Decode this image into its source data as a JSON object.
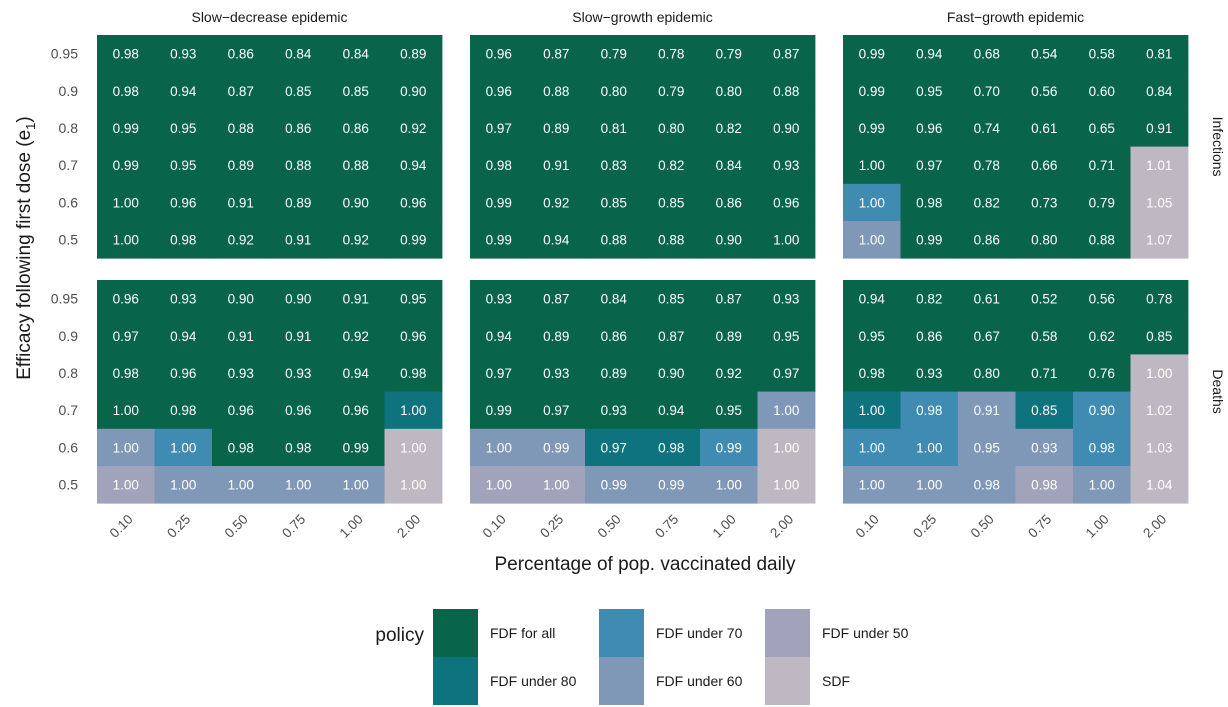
{
  "chart_data": {
    "type": "heatmap",
    "ylabel_main": "Efficacy following first dose (e",
    "ylabel_sub": "1",
    "ylabel_close": ")",
    "xlabel": "Percentage of pop. vaccinated daily",
    "columns": [
      "Slow−decrease epidemic",
      "Slow−growth epidemic",
      "Fast−growth epidemic"
    ],
    "rows": [
      "Infections",
      "Deaths"
    ],
    "x_categories": [
      "0.10",
      "0.25",
      "0.50",
      "0.75",
      "1.00",
      "2.00"
    ],
    "y_categories": [
      "0.95",
      "0.9",
      "0.8",
      "0.7",
      "0.6",
      "0.5"
    ],
    "legend": {
      "title": "policy",
      "entries": [
        {
          "name": "FDF for all",
          "color": "#08654a"
        },
        {
          "name": "FDF under 80",
          "color": "#0e737c"
        },
        {
          "name": "FDF under 70",
          "color": "#3f8bb1"
        },
        {
          "name": "FDF under 60",
          "color": "#7f98b8"
        },
        {
          "name": "FDF under 50",
          "color": "#a0a3b9"
        },
        {
          "name": "SDF",
          "color": "#bdb8c1"
        }
      ]
    },
    "panels": [
      {
        "row": "Infections",
        "column": "Slow−decrease epidemic",
        "values": [
          [
            0.98,
            0.93,
            0.86,
            0.84,
            0.84,
            0.89
          ],
          [
            0.98,
            0.94,
            0.87,
            0.85,
            0.85,
            0.9
          ],
          [
            0.99,
            0.95,
            0.88,
            0.86,
            0.86,
            0.92
          ],
          [
            0.99,
            0.95,
            0.89,
            0.88,
            0.88,
            0.94
          ],
          [
            1.0,
            0.96,
            0.91,
            0.89,
            0.9,
            0.96
          ],
          [
            1.0,
            0.98,
            0.92,
            0.91,
            0.92,
            0.99
          ]
        ],
        "policy": [
          [
            0,
            0,
            0,
            0,
            0,
            0
          ],
          [
            0,
            0,
            0,
            0,
            0,
            0
          ],
          [
            0,
            0,
            0,
            0,
            0,
            0
          ],
          [
            0,
            0,
            0,
            0,
            0,
            0
          ],
          [
            0,
            0,
            0,
            0,
            0,
            0
          ],
          [
            0,
            0,
            0,
            0,
            0,
            0
          ]
        ]
      },
      {
        "row": "Infections",
        "column": "Slow−growth epidemic",
        "values": [
          [
            0.96,
            0.87,
            0.79,
            0.78,
            0.79,
            0.87
          ],
          [
            0.96,
            0.88,
            0.8,
            0.79,
            0.8,
            0.88
          ],
          [
            0.97,
            0.89,
            0.81,
            0.8,
            0.82,
            0.9
          ],
          [
            0.98,
            0.91,
            0.83,
            0.82,
            0.84,
            0.93
          ],
          [
            0.99,
            0.92,
            0.85,
            0.85,
            0.86,
            0.96
          ],
          [
            0.99,
            0.94,
            0.88,
            0.88,
            0.9,
            1.0
          ]
        ],
        "policy": [
          [
            0,
            0,
            0,
            0,
            0,
            0
          ],
          [
            0,
            0,
            0,
            0,
            0,
            0
          ],
          [
            0,
            0,
            0,
            0,
            0,
            0
          ],
          [
            0,
            0,
            0,
            0,
            0,
            0
          ],
          [
            0,
            0,
            0,
            0,
            0,
            0
          ],
          [
            0,
            0,
            0,
            0,
            0,
            0
          ]
        ]
      },
      {
        "row": "Infections",
        "column": "Fast−growth epidemic",
        "values": [
          [
            0.99,
            0.94,
            0.68,
            0.54,
            0.58,
            0.81
          ],
          [
            0.99,
            0.95,
            0.7,
            0.56,
            0.6,
            0.84
          ],
          [
            0.99,
            0.96,
            0.74,
            0.61,
            0.65,
            0.91
          ],
          [
            1.0,
            0.97,
            0.78,
            0.66,
            0.71,
            1.01
          ],
          [
            1.0,
            0.98,
            0.82,
            0.73,
            0.79,
            1.05
          ],
          [
            1.0,
            0.99,
            0.86,
            0.8,
            0.88,
            1.07
          ]
        ],
        "policy": [
          [
            0,
            0,
            0,
            0,
            0,
            0
          ],
          [
            0,
            0,
            0,
            0,
            0,
            0
          ],
          [
            0,
            0,
            0,
            0,
            0,
            0
          ],
          [
            0,
            0,
            0,
            0,
            0,
            5
          ],
          [
            2,
            0,
            0,
            0,
            0,
            5
          ],
          [
            3,
            0,
            0,
            0,
            0,
            5
          ]
        ]
      },
      {
        "row": "Deaths",
        "column": "Slow−decrease epidemic",
        "values": [
          [
            0.96,
            0.93,
            0.9,
            0.9,
            0.91,
            0.95
          ],
          [
            0.97,
            0.94,
            0.91,
            0.91,
            0.92,
            0.96
          ],
          [
            0.98,
            0.96,
            0.93,
            0.93,
            0.94,
            0.98
          ],
          [
            1.0,
            0.98,
            0.96,
            0.96,
            0.96,
            1.0
          ],
          [
            1.0,
            1.0,
            0.98,
            0.98,
            0.99,
            1.0
          ],
          [
            1.0,
            1.0,
            1.0,
            1.0,
            1.0,
            1.0
          ]
        ],
        "policy": [
          [
            0,
            0,
            0,
            0,
            0,
            0
          ],
          [
            0,
            0,
            0,
            0,
            0,
            0
          ],
          [
            0,
            0,
            0,
            0,
            0,
            0
          ],
          [
            0,
            0,
            0,
            0,
            0,
            1
          ],
          [
            3,
            2,
            0,
            0,
            0,
            5
          ],
          [
            4,
            3,
            3,
            3,
            3,
            5
          ]
        ]
      },
      {
        "row": "Deaths",
        "column": "Slow−growth epidemic",
        "values": [
          [
            0.93,
            0.87,
            0.84,
            0.85,
            0.87,
            0.93
          ],
          [
            0.94,
            0.89,
            0.86,
            0.87,
            0.89,
            0.95
          ],
          [
            0.97,
            0.93,
            0.89,
            0.9,
            0.92,
            0.97
          ],
          [
            0.99,
            0.97,
            0.93,
            0.94,
            0.95,
            1.0
          ],
          [
            1.0,
            0.99,
            0.97,
            0.98,
            0.99,
            1.0
          ],
          [
            1.0,
            1.0,
            0.99,
            0.99,
            1.0,
            1.0
          ]
        ],
        "policy": [
          [
            0,
            0,
            0,
            0,
            0,
            0
          ],
          [
            0,
            0,
            0,
            0,
            0,
            0
          ],
          [
            0,
            0,
            0,
            0,
            0,
            0
          ],
          [
            0,
            0,
            0,
            0,
            0,
            3
          ],
          [
            3,
            3,
            1,
            1,
            2,
            5
          ],
          [
            4,
            4,
            3,
            3,
            3,
            5
          ]
        ]
      },
      {
        "row": "Deaths",
        "column": "Fast−growth epidemic",
        "values": [
          [
            0.94,
            0.82,
            0.61,
            0.52,
            0.56,
            0.78
          ],
          [
            0.95,
            0.86,
            0.67,
            0.58,
            0.62,
            0.85
          ],
          [
            0.98,
            0.93,
            0.8,
            0.71,
            0.76,
            1.0
          ],
          [
            1.0,
            0.98,
            0.91,
            0.85,
            0.9,
            1.02
          ],
          [
            1.0,
            1.0,
            0.95,
            0.93,
            0.98,
            1.03
          ],
          [
            1.0,
            1.0,
            0.98,
            0.98,
            1.0,
            1.04
          ]
        ],
        "policy": [
          [
            0,
            0,
            0,
            0,
            0,
            0
          ],
          [
            0,
            0,
            0,
            0,
            0,
            0
          ],
          [
            0,
            0,
            0,
            0,
            0,
            5
          ],
          [
            1,
            2,
            3,
            1,
            2,
            5
          ],
          [
            2,
            2,
            3,
            3,
            2,
            5
          ],
          [
            3,
            3,
            3,
            4,
            3,
            5
          ]
        ]
      }
    ]
  }
}
